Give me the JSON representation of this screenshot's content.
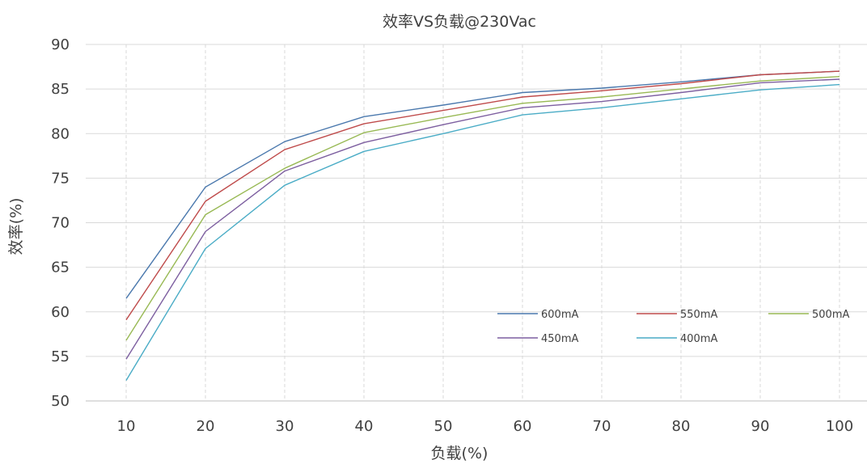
{
  "chart_data": {
    "type": "line",
    "title": "效率VS负载@230Vac",
    "xlabel": "负载(%)",
    "ylabel": "效率(%)",
    "x": [
      10,
      20,
      30,
      40,
      50,
      60,
      70,
      80,
      90,
      100
    ],
    "x_tick_labels": [
      "10",
      "20",
      "30",
      "40",
      "50",
      "60",
      "70",
      "80",
      "90",
      "100"
    ],
    "ylim": [
      50,
      90
    ],
    "y_ticks": [
      50,
      55,
      60,
      65,
      70,
      75,
      80,
      85,
      90
    ],
    "y_tick_labels": [
      "50",
      "55",
      "60",
      "65",
      "70",
      "75",
      "80",
      "85",
      "90"
    ],
    "grid": {
      "horizontal": true,
      "vertical_dashed": true
    },
    "legend_position": "lower-right",
    "series": [
      {
        "name": "600mA",
        "color": "#4a78ad",
        "values": [
          61.5,
          74.0,
          79.1,
          81.9,
          83.2,
          84.6,
          85.1,
          85.8,
          86.6,
          87.0
        ]
      },
      {
        "name": "550mA",
        "color": "#bf4b4b",
        "values": [
          59.1,
          72.4,
          78.2,
          81.1,
          82.6,
          84.1,
          84.8,
          85.6,
          86.6,
          87.0
        ]
      },
      {
        "name": "500mA",
        "color": "#98b954",
        "values": [
          56.8,
          70.9,
          76.1,
          80.1,
          81.8,
          83.4,
          84.1,
          85.0,
          85.9,
          86.4
        ]
      },
      {
        "name": "450mA",
        "color": "#7d5fa0",
        "values": [
          54.7,
          69.0,
          75.8,
          79.0,
          81.0,
          82.9,
          83.6,
          84.6,
          85.7,
          86.1
        ]
      },
      {
        "name": "400mA",
        "color": "#4aacc6",
        "values": [
          52.3,
          67.1,
          74.2,
          78.0,
          80.0,
          82.1,
          82.9,
          83.9,
          84.9,
          85.5
        ]
      }
    ]
  }
}
